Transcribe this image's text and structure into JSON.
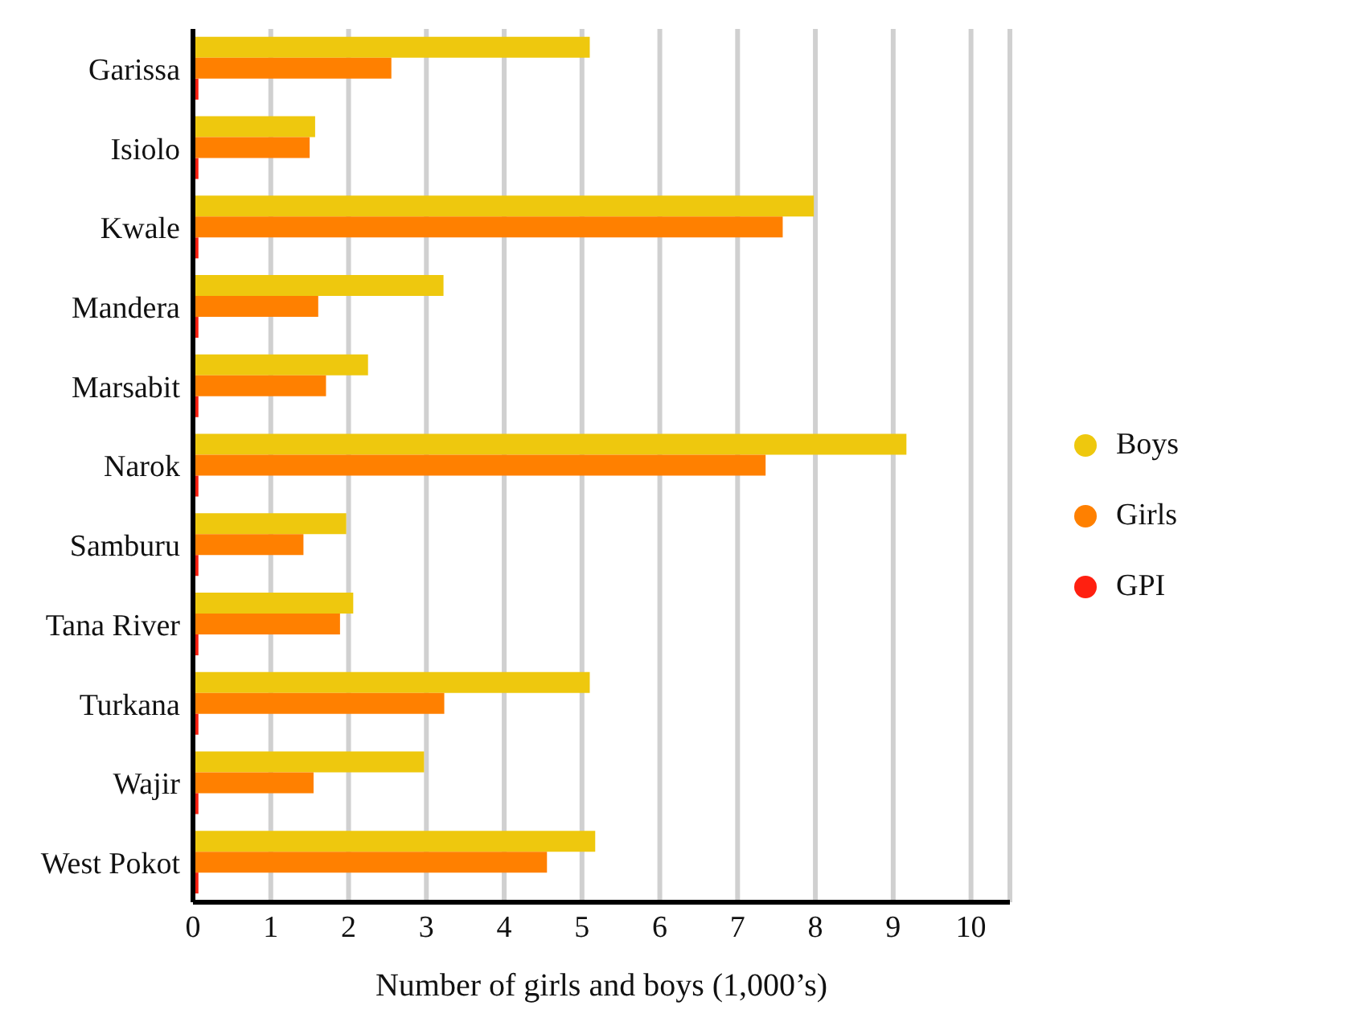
{
  "chart_data": {
    "type": "bar",
    "orientation": "horizontal",
    "xlabel": "Number of girls and boys (1,000’s)",
    "categories": [
      "Garissa",
      "Isiolo",
      "Kwale",
      "Mandera",
      "Marsabit",
      "Narok",
      "Samburu",
      "Tana River",
      "Turkana",
      "Wajir",
      "West Pokot"
    ],
    "series": [
      {
        "name": "Boys",
        "color": "#eec80e",
        "values": [
          5.1,
          1.57,
          7.98,
          3.22,
          2.25,
          9.17,
          1.97,
          2.06,
          5.1,
          2.97,
          5.17
        ]
      },
      {
        "name": "Girls",
        "color": "#ff8000",
        "values": [
          2.55,
          1.5,
          7.58,
          1.61,
          1.71,
          7.36,
          1.42,
          1.89,
          3.23,
          1.55,
          4.55
        ]
      },
      {
        "name": "GPI",
        "color": "#ff2010",
        "values": [
          0.07,
          0.07,
          0.07,
          0.07,
          0.07,
          0.07,
          0.07,
          0.07,
          0.07,
          0.07,
          0.07
        ]
      }
    ],
    "xlim": [
      0,
      10.5
    ],
    "xticks": [
      0,
      1,
      2,
      3,
      4,
      5,
      6,
      7,
      8,
      9,
      10
    ],
    "grid": "x",
    "legend": "right"
  }
}
